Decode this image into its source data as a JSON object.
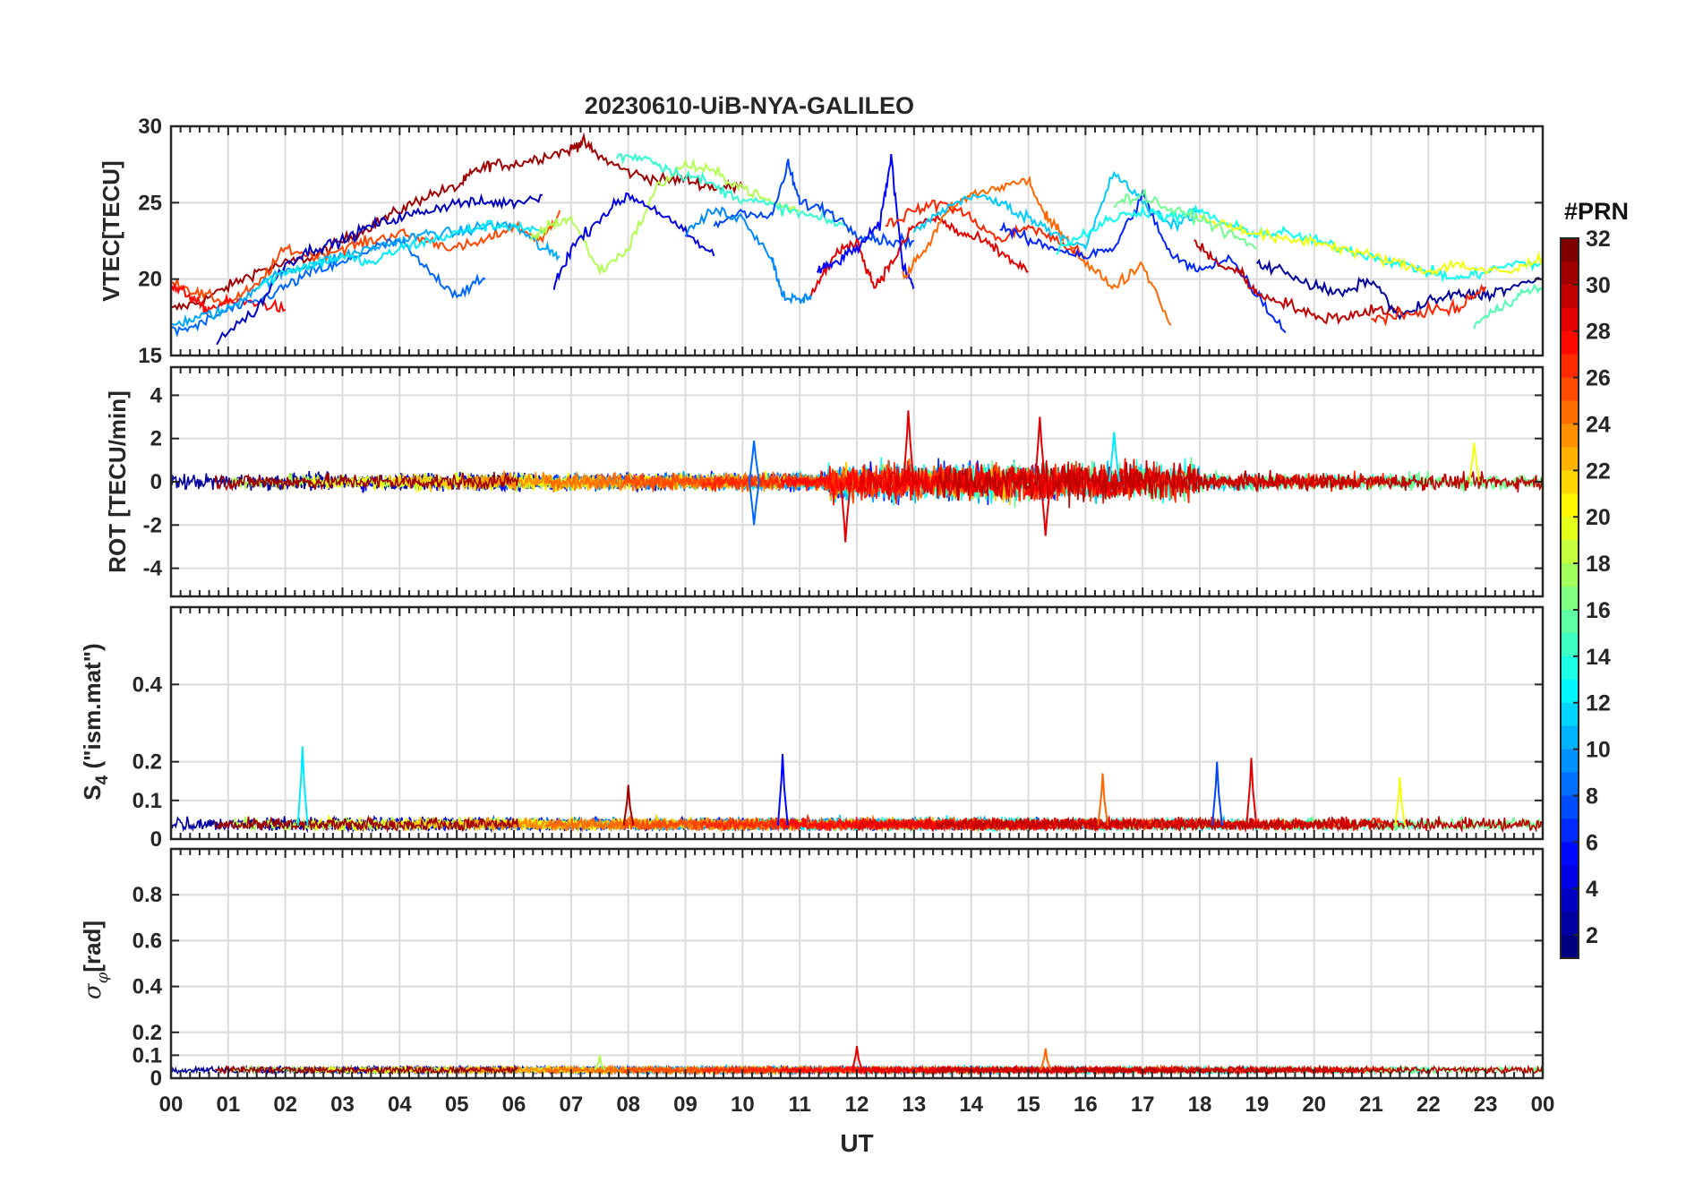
{
  "figure": {
    "title": "20230610-UiB-NYA-GALILEO",
    "xlabel": "UT",
    "colorbar": {
      "title": "#PRN",
      "ticks": [
        "2",
        "4",
        "6",
        "8",
        "10",
        "12",
        "14",
        "16",
        "18",
        "20",
        "22",
        "24",
        "26",
        "28",
        "30",
        "32"
      ],
      "range": [
        1,
        32
      ],
      "colormap": "jet"
    }
  },
  "chart_data": [
    {
      "type": "line",
      "panel": "vtec",
      "ylabel": "VTEC[TECU]",
      "ylim": [
        15,
        30
      ],
      "yticks": [
        "15",
        "20",
        "25",
        "30"
      ],
      "xlim": [
        0,
        24
      ],
      "xticks": [
        "00",
        "01",
        "02",
        "03",
        "04",
        "05",
        "06",
        "07",
        "08",
        "09",
        "10",
        "11",
        "12",
        "13",
        "14",
        "15",
        "16",
        "17",
        "18",
        "19",
        "20",
        "21",
        "22",
        "23",
        "00"
      ],
      "grid": true,
      "series": [
        {
          "prn": 31,
          "x": [
            0.0,
            0.5,
            1.0,
            1.5,
            2.0,
            2.5,
            3.0,
            3.5,
            4.0,
            4.5,
            5.0,
            5.3,
            5.6,
            6.0,
            6.5,
            7.0,
            7.2,
            7.5,
            8.0,
            8.5,
            9.0,
            9.5,
            10.0
          ],
          "y": [
            18.0,
            18.5,
            19.5,
            20.5,
            21.0,
            21.5,
            22.5,
            23.5,
            24.5,
            25.5,
            26.0,
            27.0,
            27.5,
            27.5,
            28.0,
            28.5,
            29.0,
            28.0,
            27.0,
            26.5,
            26.5,
            26.0,
            26.0
          ]
        },
        {
          "prn": 26,
          "x": [
            0.0,
            0.5,
            1.0,
            1.5,
            2.0,
            2.5,
            3.0,
            3.5,
            4.0,
            4.5,
            5.0,
            5.5,
            6.0,
            6.5,
            6.8
          ],
          "y": [
            20.0,
            19.0,
            18.5,
            19.5,
            22.0,
            21.5,
            22.0,
            22.5,
            23.0,
            22.5,
            22.0,
            22.5,
            23.5,
            22.5,
            24.5
          ]
        },
        {
          "prn": 28,
          "x": [
            0.0,
            0.3,
            0.6,
            1.0,
            1.5,
            2.0
          ],
          "y": [
            19.5,
            19.0,
            18.0,
            18.5,
            18.5,
            18.0
          ]
        },
        {
          "prn": 8,
          "x": [
            0.0,
            0.5,
            1.0,
            1.5,
            2.0,
            2.5,
            3.0,
            3.5,
            4.0,
            4.5,
            5.0,
            5.5
          ],
          "y": [
            16.5,
            17.0,
            18.0,
            18.5,
            19.5,
            20.5,
            21.0,
            22.0,
            22.5,
            20.5,
            19.0,
            20.0
          ]
        },
        {
          "prn": 10,
          "x": [
            0.0,
            0.5,
            1.0,
            1.5,
            2.0,
            2.5,
            3.0,
            3.5,
            4.0,
            4.5,
            5.0,
            5.5,
            6.0,
            6.5,
            6.8
          ],
          "y": [
            17.0,
            17.5,
            18.0,
            19.5,
            20.5,
            21.0,
            21.5,
            22.0,
            22.5,
            23.0,
            23.0,
            23.5,
            23.5,
            22.0,
            21.5
          ]
        },
        {
          "prn": 3,
          "x": [
            0.8,
            1.5,
            2.0,
            2.5,
            3.0,
            3.5,
            4.0,
            4.5,
            5.0,
            5.5,
            6.0,
            6.5
          ],
          "y": [
            16.0,
            18.0,
            21.0,
            22.0,
            22.5,
            23.5,
            24.0,
            24.5,
            25.0,
            25.0,
            25.0,
            25.5
          ]
        },
        {
          "prn": 12,
          "x": [
            1.5,
            2.0,
            2.5,
            3.0,
            3.5,
            4.0,
            4.5,
            5.0,
            5.5,
            6.0,
            6.5
          ],
          "y": [
            19.5,
            20.5,
            21.0,
            21.5,
            21.0,
            22.0,
            22.5,
            23.0,
            23.5,
            23.5,
            23.0
          ]
        },
        {
          "prn": 18,
          "x": [
            6.3,
            6.6,
            7.0,
            7.5,
            8.0,
            8.5,
            9.0,
            9.5,
            10.0,
            10.5,
            11.0
          ],
          "y": [
            22.5,
            23.5,
            24.0,
            20.5,
            22.0,
            26.0,
            27.5,
            27.0,
            26.0,
            25.0,
            24.5
          ]
        },
        {
          "prn": 14,
          "x": [
            7.8,
            8.3,
            8.8,
            9.3,
            9.8,
            10.3,
            10.8,
            11.3,
            11.8
          ],
          "y": [
            28.0,
            28.0,
            27.0,
            26.5,
            25.5,
            25.0,
            24.5,
            24.0,
            23.5
          ]
        },
        {
          "prn": 4,
          "x": [
            6.7,
            7.0,
            7.5,
            8.0,
            8.5,
            9.0,
            9.5
          ],
          "y": [
            19.5,
            22.0,
            24.0,
            25.5,
            24.5,
            23.0,
            21.5
          ]
        },
        {
          "prn": 7,
          "x": [
            9.5,
            10.0,
            10.5,
            10.8,
            11.0,
            11.5,
            12.0,
            12.5,
            13.0
          ],
          "y": [
            23.5,
            24.5,
            24.0,
            27.5,
            25.0,
            24.5,
            23.0,
            22.5,
            22.5
          ]
        },
        {
          "prn": 9,
          "x": [
            9.0,
            9.5,
            10.0,
            10.5,
            10.7,
            11.0,
            11.2
          ],
          "y": [
            23.0,
            24.5,
            24.0,
            21.5,
            19.0,
            18.5,
            19.0
          ]
        },
        {
          "prn": 29,
          "x": [
            11.2,
            11.6,
            12.0,
            12.3,
            12.6,
            13.0,
            13.4,
            13.8,
            14.2,
            14.6,
            15.0
          ],
          "y": [
            19.0,
            21.5,
            22.5,
            19.5,
            21.0,
            23.5,
            24.0,
            23.0,
            22.5,
            21.5,
            20.5
          ]
        },
        {
          "prn": 5,
          "x": [
            11.3,
            11.6,
            12.0,
            12.4,
            12.6,
            12.8,
            13.0
          ],
          "y": [
            20.5,
            21.0,
            22.0,
            23.5,
            28.0,
            21.0,
            19.5
          ]
        },
        {
          "prn": 25,
          "x": [
            12.8,
            13.2,
            13.6,
            14.0,
            14.5,
            15.0,
            15.3,
            15.6,
            16.0,
            16.5,
            17.0,
            17.5
          ],
          "y": [
            20.0,
            22.0,
            24.5,
            25.5,
            26.0,
            26.5,
            24.0,
            23.0,
            21.0,
            19.5,
            21.0,
            17.0
          ]
        },
        {
          "prn": 27,
          "x": [
            12.5,
            13.0,
            13.5,
            14.0,
            14.5,
            15.0,
            15.5,
            16.0
          ],
          "y": [
            23.5,
            24.5,
            25.0,
            24.0,
            22.5,
            23.5,
            22.5,
            21.5
          ]
        },
        {
          "prn": 11,
          "x": [
            13.0,
            13.5,
            14.0,
            14.5,
            15.0,
            15.5,
            16.0,
            16.5,
            17.0,
            17.5,
            18.0
          ],
          "y": [
            23.0,
            24.5,
            25.5,
            25.0,
            24.0,
            23.0,
            22.0,
            27.0,
            25.0,
            23.5,
            24.5
          ]
        },
        {
          "prn": 6,
          "x": [
            14.5,
            15.0,
            15.5,
            16.0,
            16.5,
            17.0,
            17.5,
            18.0,
            18.5,
            19.0,
            19.5
          ],
          "y": [
            23.5,
            22.5,
            22.0,
            21.5,
            22.0,
            25.5,
            21.5,
            20.5,
            21.5,
            19.0,
            16.5
          ]
        },
        {
          "prn": 13,
          "x": [
            15.5,
            16.0,
            16.5,
            17.0,
            17.5,
            18.0,
            18.5,
            19.0,
            19.5,
            20.0,
            20.5,
            21.0,
            21.5,
            22.0,
            22.5,
            23.0,
            23.5,
            24.0
          ],
          "y": [
            22.0,
            23.0,
            24.0,
            24.5,
            24.0,
            24.5,
            23.5,
            23.0,
            23.0,
            22.5,
            22.0,
            21.5,
            21.0,
            20.5,
            20.0,
            20.5,
            21.0,
            21.0
          ]
        },
        {
          "prn": 30,
          "x": [
            17.9,
            18.3,
            18.7,
            19.0,
            19.5,
            20.0,
            20.5,
            21.0,
            21.5
          ],
          "y": [
            22.5,
            21.0,
            20.5,
            19.0,
            18.5,
            17.5,
            17.5,
            18.0,
            18.0
          ]
        },
        {
          "prn": 20,
          "x": [
            18.0,
            18.5,
            19.0,
            19.5,
            20.0,
            20.5,
            21.0,
            21.5,
            22.0,
            22.5,
            23.0,
            23.5,
            24.0
          ],
          "y": [
            24.0,
            23.5,
            23.0,
            22.5,
            22.5,
            22.0,
            21.5,
            21.0,
            20.5,
            21.0,
            20.5,
            20.5,
            21.5
          ]
        },
        {
          "prn": 16,
          "x": [
            16.5,
            17.0,
            17.5,
            18.0,
            18.5,
            19.0
          ],
          "y": [
            25.0,
            25.5,
            24.5,
            24.0,
            23.0,
            22.0
          ]
        },
        {
          "prn": 2,
          "x": [
            19.0,
            19.5,
            20.0,
            20.5,
            21.0,
            21.5,
            22.0,
            22.5,
            23.0,
            23.5,
            24.0
          ],
          "y": [
            21.0,
            20.5,
            19.5,
            19.0,
            20.0,
            17.5,
            18.5,
            19.0,
            19.0,
            19.5,
            20.0
          ]
        },
        {
          "prn": 27,
          "x": [
            21.0,
            21.5,
            22.0,
            22.5,
            23.0
          ],
          "y": [
            17.5,
            17.5,
            18.0,
            18.0,
            19.5
          ]
        },
        {
          "prn": 15,
          "x": [
            22.8,
            23.2,
            23.6,
            24.0
          ],
          "y": [
            17.0,
            18.0,
            19.0,
            19.5
          ]
        }
      ]
    },
    {
      "type": "line",
      "panel": "rot",
      "ylabel": "ROT [TECU/min]",
      "ylim": [
        -5.3,
        5.3
      ],
      "yticks": [
        "-4",
        "-2",
        "0",
        "2",
        "4"
      ],
      "xlim": [
        0,
        24
      ],
      "grid": true,
      "description_of_data": "noisy traces around 0 for all PRNs",
      "series": [
        {
          "prn": 29,
          "x": [
            12.9,
            15.2,
            11.8,
            15.3
          ],
          "y": [
            3.3,
            3.0,
            -2.8,
            -2.5
          ]
        },
        {
          "prn": 8,
          "x": [
            10.2,
            10.2
          ],
          "y": [
            1.9,
            -2.0
          ]
        },
        {
          "prn": 12,
          "x": [
            16.5
          ],
          "y": [
            2.3
          ]
        },
        {
          "prn": 20,
          "x": [
            22.8
          ],
          "y": [
            1.8
          ]
        }
      ]
    },
    {
      "type": "line",
      "panel": "s4",
      "ylabel": "S4 (\"ism.mat\")",
      "ylim": [
        0,
        0.6
      ],
      "yticks": [
        "0",
        "0.1",
        "0.2",
        "0.4"
      ],
      "xlim": [
        0,
        24
      ],
      "grid": true,
      "series": [
        {
          "prn": 12,
          "x": [
            2.3
          ],
          "y": [
            0.24
          ]
        },
        {
          "prn": 5,
          "x": [
            10.7
          ],
          "y": [
            0.22
          ]
        },
        {
          "prn": 7,
          "x": [
            18.3
          ],
          "y": [
            0.2
          ]
        },
        {
          "prn": 29,
          "x": [
            18.9
          ],
          "y": [
            0.21
          ]
        },
        {
          "prn": 25,
          "x": [
            16.3
          ],
          "y": [
            0.17
          ]
        },
        {
          "prn": 20,
          "x": [
            21.5
          ],
          "y": [
            0.16
          ]
        },
        {
          "prn": 31,
          "x": [
            8.0
          ],
          "y": [
            0.14
          ]
        }
      ]
    },
    {
      "type": "line",
      "panel": "sigma_phi",
      "ylabel": "σφ[rad]",
      "ylim": [
        0,
        1
      ],
      "yticks": [
        "0",
        "0.1",
        "0.2",
        "0.4",
        "0.6",
        "0.8"
      ],
      "xlim": [
        0,
        24
      ],
      "grid": true,
      "series": [
        {
          "prn": 29,
          "x": [
            12.0
          ],
          "y": [
            0.14
          ]
        },
        {
          "prn": 25,
          "x": [
            15.3
          ],
          "y": [
            0.13
          ]
        },
        {
          "prn": 18,
          "x": [
            7.5
          ],
          "y": [
            0.1
          ]
        }
      ]
    }
  ]
}
